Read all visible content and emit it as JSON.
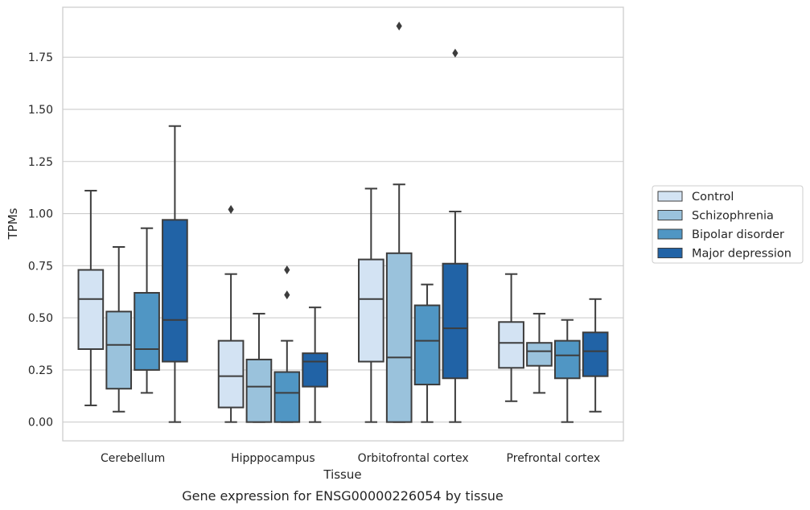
{
  "chart_data": {
    "type": "box",
    "caption": "Gene expression for ENSG00000226054 by tissue",
    "xlabel": "Tissue",
    "ylabel": "TPMs",
    "ylim": [
      -0.09,
      1.99
    ],
    "yticks": [
      0.0,
      0.25,
      0.5,
      0.75,
      1.0,
      1.25,
      1.5,
      1.75
    ],
    "ytick_labels": [
      "0.00",
      "0.25",
      "0.50",
      "0.75",
      "1.00",
      "1.25",
      "1.50",
      "1.75"
    ],
    "grid": "horizontal",
    "legend_position": "right",
    "categories": [
      "Cerebellum",
      "Hipppocampus",
      "Orbitofrontal cortex",
      "Prefrontal cortex"
    ],
    "series": [
      {
        "name": "Control",
        "color": "#d3e3f3",
        "boxes": [
          {
            "whisker_low": 0.08,
            "q1": 0.35,
            "median": 0.59,
            "q3": 0.73,
            "whisker_high": 1.11,
            "outliers": []
          },
          {
            "whisker_low": 0.0,
            "q1": 0.07,
            "median": 0.22,
            "q3": 0.39,
            "whisker_high": 0.71,
            "outliers": [
              1.02
            ]
          },
          {
            "whisker_low": 0.0,
            "q1": 0.29,
            "median": 0.59,
            "q3": 0.78,
            "whisker_high": 1.12,
            "outliers": []
          },
          {
            "whisker_low": 0.1,
            "q1": 0.26,
            "median": 0.38,
            "q3": 0.48,
            "whisker_high": 0.71,
            "outliers": []
          }
        ]
      },
      {
        "name": "Schizophrenia",
        "color": "#9ac2dc",
        "boxes": [
          {
            "whisker_low": 0.05,
            "q1": 0.16,
            "median": 0.37,
            "q3": 0.53,
            "whisker_high": 0.84,
            "outliers": []
          },
          {
            "whisker_low": 0.0,
            "q1": 0.0,
            "median": 0.17,
            "q3": 0.3,
            "whisker_high": 0.52,
            "outliers": []
          },
          {
            "whisker_low": 0.0,
            "q1": 0.0,
            "median": 0.31,
            "q3": 0.81,
            "whisker_high": 1.14,
            "outliers": [
              1.9
            ]
          },
          {
            "whisker_low": 0.14,
            "q1": 0.27,
            "median": 0.34,
            "q3": 0.38,
            "whisker_high": 0.52,
            "outliers": []
          }
        ]
      },
      {
        "name": "Bipolar disorder",
        "color": "#5096c4",
        "boxes": [
          {
            "whisker_low": 0.14,
            "q1": 0.25,
            "median": 0.35,
            "q3": 0.62,
            "whisker_high": 0.93,
            "outliers": []
          },
          {
            "whisker_low": 0.0,
            "q1": 0.0,
            "median": 0.14,
            "q3": 0.24,
            "whisker_high": 0.39,
            "outliers": [
              0.61,
              0.73
            ]
          },
          {
            "whisker_low": 0.0,
            "q1": 0.18,
            "median": 0.39,
            "q3": 0.56,
            "whisker_high": 0.66,
            "outliers": []
          },
          {
            "whisker_low": 0.0,
            "q1": 0.21,
            "median": 0.32,
            "q3": 0.39,
            "whisker_high": 0.49,
            "outliers": []
          }
        ]
      },
      {
        "name": "Major depression",
        "color": "#2163a6",
        "boxes": [
          {
            "whisker_low": 0.0,
            "q1": 0.29,
            "median": 0.49,
            "q3": 0.97,
            "whisker_high": 1.42,
            "outliers": []
          },
          {
            "whisker_low": 0.0,
            "q1": 0.17,
            "median": 0.29,
            "q3": 0.33,
            "whisker_high": 0.55,
            "outliers": []
          },
          {
            "whisker_low": 0.0,
            "q1": 0.21,
            "median": 0.45,
            "q3": 0.76,
            "whisker_high": 1.01,
            "outliers": [
              1.77
            ]
          },
          {
            "whisker_low": 0.05,
            "q1": 0.22,
            "median": 0.34,
            "q3": 0.43,
            "whisker_high": 0.59,
            "outliers": []
          }
        ]
      }
    ]
  }
}
